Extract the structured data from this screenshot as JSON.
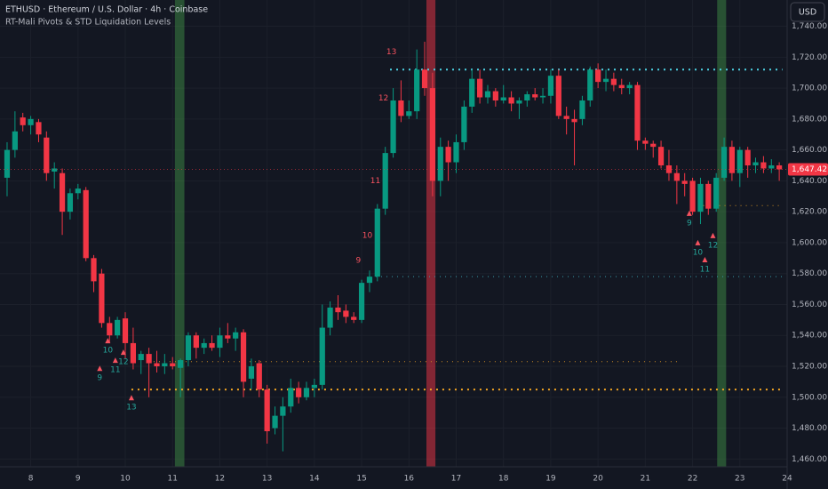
{
  "chart_data": {
    "type": "candlestick",
    "title": "ETHUSD · Ethereum / U.S. Dollar · 4h · Coinbase",
    "subtitle": "RT-Mali Pivots & STD Liquidation Levels",
    "currency": "USD",
    "last_price_label": "1,647.42",
    "up_color": "#089981",
    "down_color": "#f23645",
    "x": [
      7.5,
      7.667,
      7.833,
      8,
      8.167,
      8.333,
      8.5,
      8.667,
      8.833,
      9,
      9.167,
      9.333,
      9.5,
      9.667,
      9.833,
      10,
      10.167,
      10.333,
      10.5,
      10.667,
      10.833,
      11,
      11.167,
      11.333,
      11.5,
      11.667,
      11.833,
      12,
      12.167,
      12.333,
      12.5,
      12.667,
      12.833,
      13,
      13.167,
      13.333,
      13.5,
      13.667,
      13.833,
      14,
      14.167,
      14.333,
      14.5,
      14.667,
      14.833,
      15,
      15.167,
      15.333,
      15.5,
      15.667,
      15.833,
      16,
      16.167,
      16.333,
      16.5,
      16.667,
      16.833,
      17,
      17.167,
      17.333,
      17.5,
      17.667,
      17.833,
      18,
      18.167,
      18.333,
      18.5,
      18.667,
      18.833,
      19,
      19.167,
      19.333,
      19.5,
      19.667,
      19.833,
      20,
      20.167,
      20.333,
      20.5,
      20.667,
      20.833,
      21,
      21.167,
      21.333,
      21.5,
      21.667,
      21.833,
      22,
      22.167,
      22.333,
      22.5,
      22.667,
      22.833,
      23,
      23.167,
      23.333,
      23.5,
      23.667,
      23.833
    ],
    "open": [
      1642,
      1660,
      1681,
      1676,
      1678,
      1668,
      1646,
      1645,
      1620,
      1632,
      1634,
      1590,
      1580,
      1548,
      1540,
      1551,
      1535,
      1524,
      1528,
      1522,
      1520,
      1522,
      1519,
      1524,
      1540,
      1532,
      1535,
      1532,
      1540,
      1538,
      1542,
      1512,
      1522,
      1505,
      1480,
      1488,
      1494,
      1506,
      1500,
      1506,
      1508,
      1545,
      1558,
      1556,
      1552,
      1550,
      1574,
      1578,
      1622,
      1658,
      1692,
      1682,
      1685,
      1712,
      1700,
      1640,
      1662,
      1652,
      1665,
      1688,
      1706,
      1694,
      1698,
      1692,
      1694,
      1690,
      1692,
      1696,
      1694,
      1695,
      1708,
      1682,
      1680,
      1680,
      1692,
      1712,
      1704,
      1706,
      1702,
      1700,
      1702,
      1666,
      1664,
      1662,
      1650,
      1645,
      1640,
      1640,
      1620,
      1638,
      1622,
      1642,
      1662,
      1645,
      1660,
      1650,
      1652,
      1648,
      1650
    ],
    "high": [
      1665,
      1685,
      1684,
      1682,
      1680,
      1672,
      1652,
      1648,
      1635,
      1638,
      1636,
      1592,
      1583,
      1552,
      1552,
      1555,
      1545,
      1530,
      1532,
      1530,
      1528,
      1526,
      1525,
      1542,
      1542,
      1538,
      1540,
      1545,
      1548,
      1545,
      1544,
      1525,
      1524,
      1508,
      1494,
      1500,
      1512,
      1510,
      1510,
      1512,
      1560,
      1562,
      1566,
      1560,
      1555,
      1576,
      1582,
      1625,
      1662,
      1700,
      1705,
      1692,
      1725,
      1730,
      1710,
      1668,
      1666,
      1670,
      1692,
      1712,
      1712,
      1702,
      1700,
      1702,
      1698,
      1694,
      1698,
      1700,
      1700,
      1712,
      1712,
      1688,
      1686,
      1695,
      1714,
      1716,
      1712,
      1710,
      1706,
      1704,
      1704,
      1668,
      1666,
      1666,
      1660,
      1650,
      1645,
      1642,
      1642,
      1640,
      1645,
      1668,
      1666,
      1662,
      1662,
      1655,
      1656,
      1654,
      1652
    ],
    "low": [
      1630,
      1655,
      1672,
      1670,
      1665,
      1640,
      1635,
      1605,
      1615,
      1628,
      1588,
      1568,
      1545,
      1535,
      1538,
      1525,
      1518,
      1515,
      1500,
      1516,
      1515,
      1518,
      1500,
      1520,
      1525,
      1528,
      1530,
      1526,
      1535,
      1530,
      1500,
      1505,
      1500,
      1470,
      1476,
      1465,
      1490,
      1496,
      1498,
      1500,
      1505,
      1540,
      1550,
      1548,
      1548,
      1548,
      1568,
      1575,
      1618,
      1655,
      1678,
      1680,
      1680,
      1695,
      1630,
      1630,
      1640,
      1645,
      1660,
      1684,
      1690,
      1690,
      1688,
      1690,
      1685,
      1680,
      1688,
      1692,
      1690,
      1690,
      1680,
      1670,
      1650,
      1676,
      1688,
      1700,
      1698,
      1698,
      1696,
      1696,
      1660,
      1660,
      1655,
      1648,
      1640,
      1625,
      1630,
      1618,
      1612,
      1618,
      1620,
      1640,
      1640,
      1636,
      1642,
      1645,
      1645,
      1645,
      1640
    ],
    "close": [
      1660,
      1672,
      1676,
      1680,
      1670,
      1645,
      1648,
      1620,
      1632,
      1635,
      1590,
      1575,
      1548,
      1540,
      1550,
      1535,
      1522,
      1528,
      1522,
      1520,
      1522,
      1520,
      1524,
      1540,
      1532,
      1535,
      1532,
      1540,
      1538,
      1542,
      1510,
      1520,
      1505,
      1478,
      1488,
      1494,
      1506,
      1500,
      1506,
      1508,
      1545,
      1558,
      1555,
      1552,
      1550,
      1574,
      1578,
      1622,
      1658,
      1692,
      1682,
      1685,
      1712,
      1700,
      1640,
      1662,
      1652,
      1665,
      1688,
      1706,
      1694,
      1698,
      1692,
      1694,
      1690,
      1692,
      1696,
      1694,
      1695,
      1708,
      1682,
      1680,
      1678,
      1692,
      1712,
      1704,
      1706,
      1702,
      1700,
      1702,
      1666,
      1664,
      1662,
      1650,
      1645,
      1640,
      1638,
      1620,
      1638,
      1622,
      1642,
      1662,
      1645,
      1660,
      1650,
      1652,
      1648,
      1650,
      1647.42
    ],
    "xlim": [
      7.35,
      24.0
    ],
    "xticks": [
      8,
      9,
      10,
      11,
      12,
      13,
      14,
      15,
      16,
      17,
      18,
      19,
      20,
      21,
      22,
      23,
      24
    ],
    "ylim": [
      1455,
      1757
    ],
    "yticks": [
      {
        "value": 1460,
        "label": "1,460.00"
      },
      {
        "value": 1480,
        "label": "1,480.00"
      },
      {
        "value": 1500,
        "label": "1,500.00"
      },
      {
        "value": 1520,
        "label": "1,520.00"
      },
      {
        "value": 1540,
        "label": "1,540.00"
      },
      {
        "value": 1560,
        "label": "1,560.00"
      },
      {
        "value": 1580,
        "label": "1,580.00"
      },
      {
        "value": 1600,
        "label": "1,600.00"
      },
      {
        "value": 1620,
        "label": "1,620.00"
      },
      {
        "value": 1640,
        "label": "1,640.00"
      },
      {
        "value": 1660,
        "label": "1,660.00"
      },
      {
        "value": 1680,
        "label": "1,680.00"
      },
      {
        "value": 1700,
        "label": "1,700.00"
      },
      {
        "value": 1720,
        "label": "1,720.00"
      },
      {
        "value": 1740,
        "label": "1,740.00"
      }
    ],
    "grid": true,
    "bands": [
      {
        "x": [
          11.05,
          11.25
        ],
        "color": "rgba(76,175,80,0.38)"
      },
      {
        "x": [
          16.37,
          16.56
        ],
        "color": "rgba(242,54,69,0.5)"
      },
      {
        "x": [
          22.52,
          22.71
        ],
        "color": "rgba(76,175,80,0.38)"
      }
    ],
    "levels": [
      {
        "value": 1712,
        "x": [
          15.6,
          23.9
        ],
        "color": "#4dd0e1",
        "width": 2
      },
      {
        "value": 1578,
        "x": [
          15.3,
          23.9
        ],
        "color": "#3a9fad",
        "width": 1
      },
      {
        "value": 1505,
        "x": [
          10.13,
          23.9
        ],
        "color": "#f5a623",
        "width": 2
      },
      {
        "value": 1523,
        "x": [
          10.6,
          21.75
        ],
        "color": "#c98a24",
        "width": 1
      },
      {
        "value": 1624,
        "x": [
          22.0,
          23.9
        ],
        "color": "#c98a24",
        "width": 1
      }
    ],
    "annotations": [
      {
        "label": "9",
        "x": 14.93,
        "y": 1588.5,
        "color": "#f7525f",
        "arrow": false
      },
      {
        "label": "10",
        "x": 15.12,
        "y": 1604.6,
        "color": "#f7525f",
        "arrow": false
      },
      {
        "label": "11",
        "x": 15.29,
        "y": 1639.8,
        "color": "#f7525f",
        "arrow": false
      },
      {
        "label": "12",
        "x": 15.46,
        "y": 1693.3,
        "color": "#f7525f",
        "arrow": false
      },
      {
        "label": "13",
        "x": 15.63,
        "y": 1723.3,
        "color": "#f7525f",
        "arrow": false
      },
      {
        "label": "9",
        "x": 9.46,
        "y": 1512.4,
        "color": "#26a69a",
        "arrow": true
      },
      {
        "label": "10",
        "x": 9.63,
        "y": 1530.3,
        "color": "#26a69a",
        "arrow": true
      },
      {
        "label": "11",
        "x": 9.79,
        "y": 1517.6,
        "color": "#26a69a",
        "arrow": true
      },
      {
        "label": "12",
        "x": 9.96,
        "y": 1522.8,
        "color": "#26a69a",
        "arrow": true
      },
      {
        "label": "13",
        "x": 10.13,
        "y": 1493.4,
        "color": "#26a69a",
        "arrow": true
      },
      {
        "label": "9",
        "x": 21.93,
        "y": 1612.7,
        "color": "#26a69a",
        "arrow": true
      },
      {
        "label": "10",
        "x": 22.11,
        "y": 1593.7,
        "color": "#26a69a",
        "arrow": true
      },
      {
        "label": "11",
        "x": 22.26,
        "y": 1582.7,
        "color": "#26a69a",
        "arrow": true
      },
      {
        "label": "12",
        "x": 22.43,
        "y": 1598.3,
        "color": "#26a69a",
        "arrow": true
      }
    ]
  }
}
